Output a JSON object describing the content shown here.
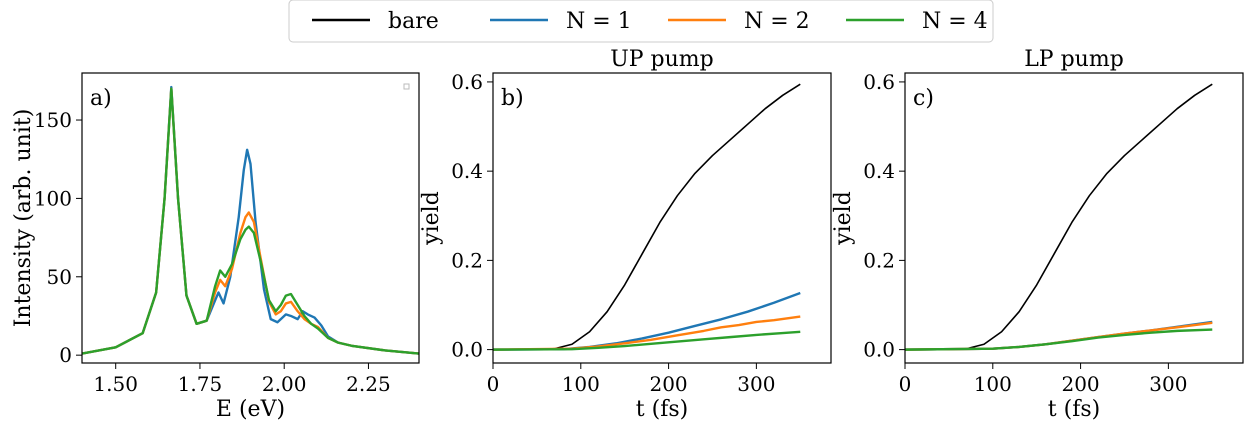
{
  "legend": {
    "entries": [
      {
        "label": "bare",
        "color": "#000000"
      },
      {
        "label": "N = 1",
        "color": "#1f77b4"
      },
      {
        "label": "N = 2",
        "color": "#ff7f0e"
      },
      {
        "label": "N = 4",
        "color": "#2ca02c"
      }
    ]
  },
  "chart_data": [
    {
      "type": "line",
      "panel_label": "a)",
      "title": "",
      "xlabel": "E (eV)",
      "ylabel": "Intensity (arb. unit)",
      "xlim": [
        1.4,
        2.4
      ],
      "ylim": [
        -5,
        180
      ],
      "xticks": [
        1.5,
        1.75,
        2.0,
        2.25
      ],
      "xtick_labels": [
        "1.50",
        "1.75",
        "2.00",
        "2.25"
      ],
      "yticks": [
        0,
        50,
        100,
        150
      ],
      "ytick_labels": [
        "0",
        "50",
        "100",
        "150"
      ],
      "series": [
        {
          "name": "N = 1",
          "color": "#1f77b4",
          "x": [
            1.4,
            1.5,
            1.58,
            1.62,
            1.645,
            1.665,
            1.685,
            1.71,
            1.74,
            1.77,
            1.795,
            1.805,
            1.82,
            1.84,
            1.865,
            1.88,
            1.89,
            1.9,
            1.915,
            1.94,
            1.96,
            1.98,
            1.99,
            2.005,
            2.02,
            2.04,
            2.055,
            2.07,
            2.09,
            2.11,
            2.13,
            2.16,
            2.2,
            2.3,
            2.4
          ],
          "y": [
            1,
            5,
            14,
            40,
            100,
            171,
            100,
            38,
            20,
            22,
            35,
            40,
            33,
            50,
            88,
            118,
            131,
            122,
            85,
            42,
            23,
            21,
            23,
            26,
            25,
            23,
            28,
            26,
            24,
            19,
            12,
            8,
            6,
            3,
            1
          ]
        },
        {
          "name": "N = 2",
          "color": "#ff7f0e",
          "x": [
            1.4,
            1.5,
            1.58,
            1.62,
            1.645,
            1.665,
            1.685,
            1.71,
            1.74,
            1.77,
            1.795,
            1.81,
            1.825,
            1.845,
            1.87,
            1.885,
            1.895,
            1.91,
            1.93,
            1.955,
            1.975,
            1.99,
            2.005,
            2.02,
            2.04,
            2.06,
            2.08,
            2.1,
            2.13,
            2.16,
            2.2,
            2.3,
            2.4
          ],
          "y": [
            1,
            5,
            14,
            40,
            100,
            170,
            100,
            38,
            20,
            22,
            40,
            48,
            44,
            55,
            78,
            88,
            91,
            85,
            62,
            34,
            26,
            28,
            33,
            34,
            28,
            23,
            20,
            18,
            11,
            8,
            6,
            3,
            1
          ]
        },
        {
          "name": "N = 4",
          "color": "#2ca02c",
          "x": [
            1.4,
            1.5,
            1.58,
            1.62,
            1.645,
            1.665,
            1.685,
            1.71,
            1.74,
            1.77,
            1.795,
            1.81,
            1.825,
            1.845,
            1.87,
            1.885,
            1.895,
            1.91,
            1.93,
            1.955,
            1.975,
            1.99,
            2.005,
            2.02,
            2.04,
            2.06,
            2.08,
            2.1,
            2.13,
            2.16,
            2.2,
            2.3,
            2.4
          ],
          "y": [
            1,
            5,
            14,
            40,
            100,
            170,
            100,
            38,
            20,
            22,
            44,
            54,
            50,
            58,
            74,
            80,
            82,
            78,
            60,
            35,
            28,
            32,
            38,
            39,
            32,
            25,
            20,
            17,
            11,
            8,
            6,
            3,
            1
          ]
        }
      ]
    },
    {
      "type": "line",
      "panel_label": "b)",
      "title": "UP pump",
      "xlabel": "t (fs)",
      "ylabel": "yield",
      "xlim": [
        0,
        385
      ],
      "ylim": [
        -0.03,
        0.62
      ],
      "xticks": [
        0,
        100,
        200,
        300
      ],
      "xtick_labels": [
        "0",
        "100",
        "200",
        "300"
      ],
      "yticks": [
        0,
        0.2,
        0.4,
        0.6
      ],
      "ytick_labels": [
        "0.0",
        "0.2",
        "0.4",
        "0.6"
      ],
      "series": [
        {
          "name": "bare",
          "color": "#000000",
          "x": [
            0,
            50,
            70,
            90,
            110,
            130,
            150,
            170,
            190,
            210,
            230,
            250,
            270,
            290,
            310,
            330,
            350
          ],
          "y": [
            0,
            0.0,
            0.002,
            0.012,
            0.04,
            0.085,
            0.145,
            0.215,
            0.285,
            0.345,
            0.395,
            0.435,
            0.47,
            0.505,
            0.54,
            0.57,
            0.595
          ]
        },
        {
          "name": "N = 1",
          "color": "#1f77b4",
          "x": [
            0,
            80,
            110,
            140,
            170,
            200,
            230,
            260,
            290,
            320,
            350
          ],
          "y": [
            0,
            0.001,
            0.006,
            0.014,
            0.025,
            0.038,
            0.053,
            0.068,
            0.085,
            0.105,
            0.127
          ]
        },
        {
          "name": "N = 2",
          "color": "#ff7f0e",
          "x": [
            0,
            90,
            120,
            150,
            180,
            210,
            240,
            260,
            280,
            300,
            320,
            350
          ],
          "y": [
            0,
            0.002,
            0.007,
            0.014,
            0.022,
            0.032,
            0.042,
            0.05,
            0.055,
            0.062,
            0.066,
            0.074
          ]
        },
        {
          "name": "N = 4",
          "color": "#2ca02c",
          "x": [
            0,
            90,
            120,
            150,
            180,
            210,
            240,
            270,
            300,
            330,
            350
          ],
          "y": [
            0,
            0.001,
            0.004,
            0.008,
            0.013,
            0.018,
            0.023,
            0.028,
            0.033,
            0.037,
            0.04
          ]
        }
      ]
    },
    {
      "type": "line",
      "panel_label": "c)",
      "title": "LP pump",
      "xlabel": "t (fs)",
      "ylabel": "yield",
      "xlim": [
        0,
        385
      ],
      "ylim": [
        -0.03,
        0.62
      ],
      "xticks": [
        0,
        100,
        200,
        300
      ],
      "xtick_labels": [
        "0",
        "100",
        "200",
        "300"
      ],
      "yticks": [
        0,
        0.2,
        0.4,
        0.6
      ],
      "ytick_labels": [
        "0.0",
        "0.2",
        "0.4",
        "0.6"
      ],
      "series": [
        {
          "name": "bare",
          "color": "#000000",
          "x": [
            0,
            50,
            70,
            90,
            110,
            130,
            150,
            170,
            190,
            210,
            230,
            250,
            270,
            290,
            310,
            330,
            350
          ],
          "y": [
            0,
            0.0,
            0.002,
            0.012,
            0.04,
            0.085,
            0.145,
            0.215,
            0.285,
            0.345,
            0.395,
            0.435,
            0.47,
            0.505,
            0.54,
            0.57,
            0.595
          ]
        },
        {
          "name": "N = 1",
          "color": "#1f77b4",
          "x": [
            0,
            100,
            130,
            160,
            190,
            220,
            250,
            280,
            310,
            350
          ],
          "y": [
            0,
            0.002,
            0.006,
            0.012,
            0.02,
            0.028,
            0.036,
            0.043,
            0.051,
            0.062
          ]
        },
        {
          "name": "N = 2",
          "color": "#ff7f0e",
          "x": [
            0,
            100,
            130,
            160,
            190,
            220,
            250,
            280,
            310,
            350
          ],
          "y": [
            0,
            0.002,
            0.006,
            0.012,
            0.02,
            0.028,
            0.036,
            0.043,
            0.05,
            0.06
          ]
        },
        {
          "name": "N = 4",
          "color": "#2ca02c",
          "x": [
            0,
            100,
            130,
            160,
            190,
            220,
            250,
            280,
            310,
            350
          ],
          "y": [
            0,
            0.002,
            0.006,
            0.012,
            0.019,
            0.027,
            0.033,
            0.038,
            0.042,
            0.045
          ]
        }
      ]
    }
  ]
}
